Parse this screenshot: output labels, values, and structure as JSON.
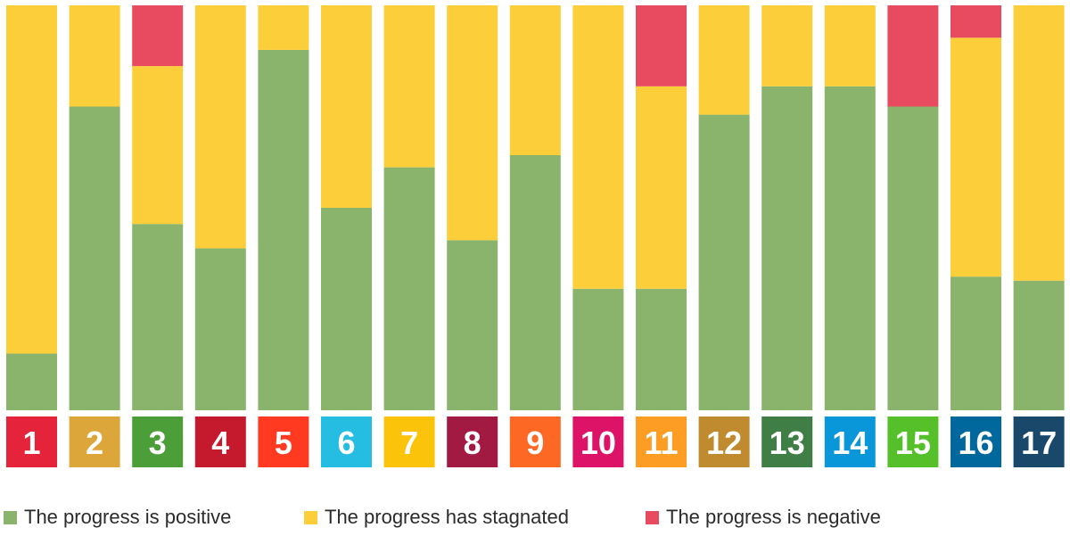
{
  "chart_data": {
    "type": "bar",
    "stacked": true,
    "categories": [
      "1",
      "2",
      "3",
      "4",
      "5",
      "6",
      "7",
      "8",
      "9",
      "10",
      "11",
      "12",
      "13",
      "14",
      "15",
      "16",
      "17"
    ],
    "category_colors": [
      "#e5243b",
      "#dda63a",
      "#4c9f38",
      "#c5192d",
      "#ff3a21",
      "#26bde2",
      "#fcc30b",
      "#a21942",
      "#fd6925",
      "#dd1367",
      "#fd9d24",
      "#bf8b2e",
      "#3f7e44",
      "#0a97d9",
      "#56c02b",
      "#00689d",
      "#19486a"
    ],
    "ylim": [
      0,
      100
    ],
    "series": [
      {
        "name": "The progress is positive",
        "color": "#8ab36b",
        "values": [
          14,
          75,
          46,
          40,
          89,
          50,
          60,
          42,
          63,
          30,
          30,
          73,
          80,
          80,
          75,
          33,
          32
        ]
      },
      {
        "name": "The progress has stagnated",
        "color": "#fccf3a",
        "values": [
          86,
          25,
          39,
          60,
          11,
          50,
          40,
          58,
          37,
          70,
          50,
          27,
          20,
          20,
          0,
          59,
          68
        ]
      },
      {
        "name": "The progress is negative",
        "color": "#e84a5f",
        "values": [
          0,
          0,
          15,
          0,
          0,
          0,
          0,
          0,
          0,
          0,
          20,
          0,
          0,
          0,
          25,
          8,
          0
        ]
      }
    ]
  },
  "legend": {
    "items": [
      {
        "label": "The progress is positive",
        "color": "#8ab36b"
      },
      {
        "label": "The progress has stagnated",
        "color": "#fccf3a"
      },
      {
        "label": "The progress is negative",
        "color": "#e84a5f"
      }
    ]
  }
}
